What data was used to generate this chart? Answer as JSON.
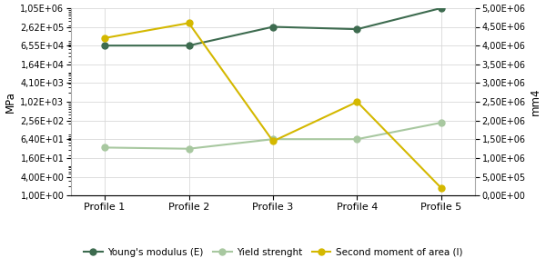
{
  "profiles": [
    "Profile 1",
    "Profile 2",
    "Profile 3",
    "Profile 4",
    "Profile 5"
  ],
  "young_modulus": [
    65500.0,
    65500.0,
    262000.0,
    220000.0,
    1050000.0
  ],
  "yield_strength": [
    35.0,
    32.0,
    65.0,
    65.0,
    220.0
  ],
  "second_moment": [
    4200000.0,
    4600000.0,
    1450000.0,
    2500000.0,
    200000.0
  ],
  "young_color": "#3d6b4f",
  "yield_color": "#a8c8a0",
  "moment_color": "#d4b800",
  "left_ylabel": "MPa",
  "right_ylabel": "mm4",
  "left_yticks": [
    1.0,
    4.0,
    16.0,
    64.0,
    256.0,
    1020.0,
    4100.0,
    16400.0,
    65500.0,
    262000.0,
    1050000.0
  ],
  "right_yticks": [
    0.0,
    500000.0,
    1000000.0,
    1500000.0,
    2000000.0,
    2500000.0,
    3000000.0,
    3500000.0,
    4000000.0,
    4500000.0,
    5000000.0
  ],
  "legend_labels": [
    "Young's modulus (E)",
    "Yield strenght",
    "Second moment of area (I)"
  ],
  "fig_bg": "#ffffff",
  "plot_bg": "#ffffff",
  "grid_color": "#d8d8d8"
}
